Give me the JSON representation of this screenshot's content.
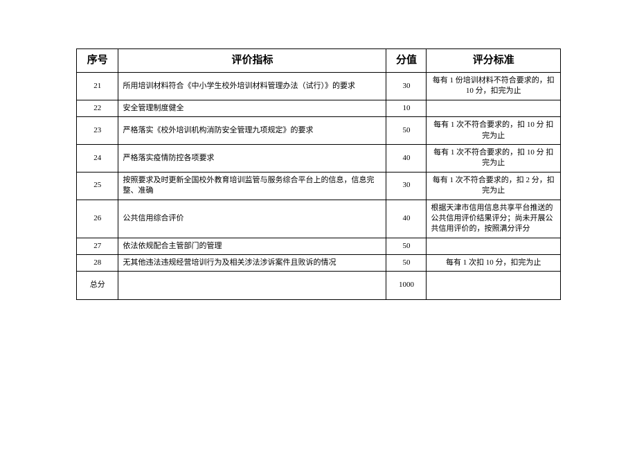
{
  "table": {
    "headers": {
      "seq": "序号",
      "indicator": "评价指标",
      "score": "分值",
      "standard": "评分标准"
    },
    "rows": [
      {
        "seq": "21",
        "indicator": "所用培训材料符合《中小学生校外培训材料管理办法（试行）》的要求",
        "score": "30",
        "standard": "每有 1 份培训材料不符合要求的，扣 10 分，扣完为止"
      },
      {
        "seq": "22",
        "indicator": "安全管理制度健全",
        "score": "10",
        "standard": ""
      },
      {
        "seq": "23",
        "indicator": "严格落实《校外培训机构消防安全管理九项规定》的要求",
        "score": "50",
        "standard": "每有 1 次不符合要求的，扣 10 分 扣完为止"
      },
      {
        "seq": "24",
        "indicator": "严格落实疫情防控各项要求",
        "score": "40",
        "standard": "每有 1 次不符合要求的，扣 10 分 扣完为止"
      },
      {
        "seq": "25",
        "indicator": "按照要求及时更新全国校外教育培训监管与服务综合平台上的信息，信息完整、准确",
        "score": "30",
        "standard": "每有 1 次不符合要求的，扣 2 分，扣完为止"
      },
      {
        "seq": "26",
        "indicator": "公共信用综合评价",
        "score": "40",
        "standard": "根据天津市信用信息共享平台推送的公共信用评价结果评分；尚未开展公共信用评价的，按照满分评分"
      },
      {
        "seq": "27",
        "indicator": "依法依规配合主管部门的管理",
        "score": "50",
        "standard": ""
      },
      {
        "seq": "28",
        "indicator": "无其他违法违规经营培训行为及相关涉法涉诉案件且败诉的情况",
        "score": "50",
        "standard": "每有 1 次扣 10 分，扣完为止"
      }
    ],
    "total": {
      "label": "总分",
      "value": "1000"
    }
  }
}
